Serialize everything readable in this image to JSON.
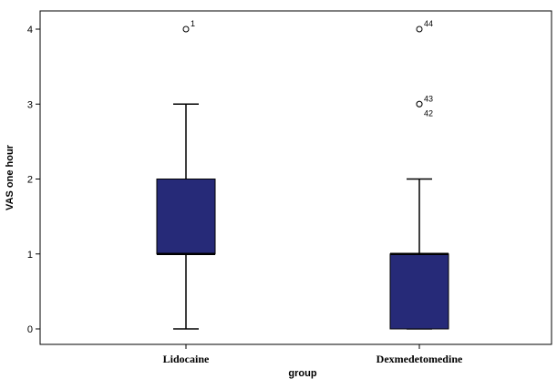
{
  "chart_data": {
    "type": "box",
    "title": "",
    "xlabel": "group",
    "ylabel": "VAS one hour",
    "ylim": [
      -0.2,
      4.2
    ],
    "yticks": [
      0,
      1,
      2,
      3,
      4
    ],
    "ytick_labels": [
      "0",
      "1",
      "2",
      "3",
      "4"
    ],
    "grid": false,
    "categories": [
      "Lidocaine",
      "Dexmedetomedine"
    ],
    "box_color": "#262a78",
    "boxes": [
      {
        "category": "Lidocaine",
        "whisker_low": 0,
        "q1": 1,
        "median": 1,
        "q3": 2,
        "whisker_high": 3,
        "outliers": [
          {
            "value": 4,
            "label": "1"
          }
        ]
      },
      {
        "category": "Dexmedetomedine",
        "whisker_low": 0,
        "q1": 0,
        "median": 1,
        "q3": 1,
        "whisker_high": 2,
        "outliers": [
          {
            "value": 4,
            "label": "44"
          },
          {
            "value": 3,
            "label": "43"
          },
          {
            "value": 3,
            "label": "42"
          }
        ]
      }
    ]
  }
}
